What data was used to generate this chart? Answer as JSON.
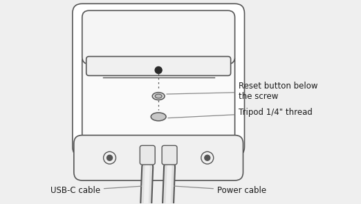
{
  "bg_color": "#efefef",
  "device_color": "#ffffff",
  "outline_color": "#555555",
  "label_reset": "Reset button below\nthe screw",
  "label_tripod": "Tripod 1/4\" thread",
  "label_usbc": "USB-C cable",
  "label_power": "Power cable",
  "font_size_label": 8.5,
  "font_color": "#1a1a1a",
  "arrow_color": "#888888"
}
